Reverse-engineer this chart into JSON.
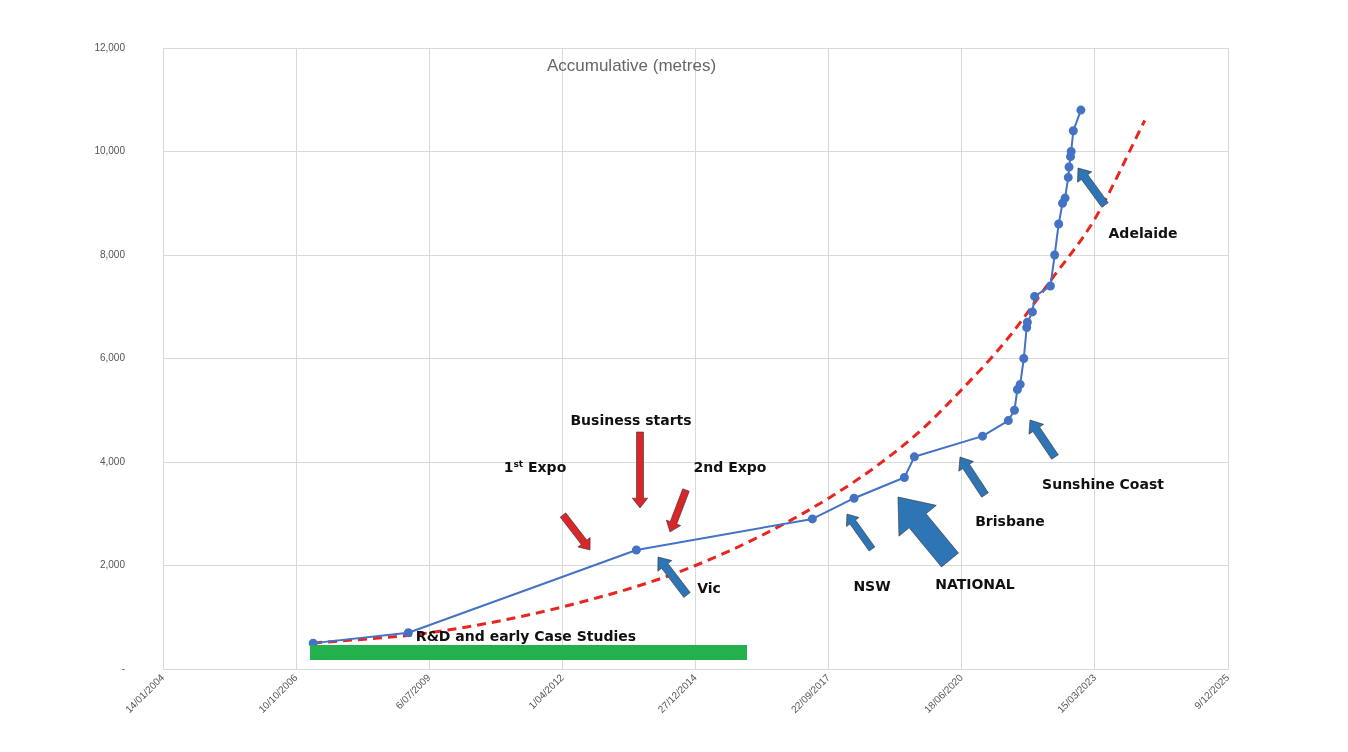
{
  "chart_data": {
    "type": "line",
    "title": "Accumulative (metres)",
    "xlim": [
      "2004-01-14",
      "2025-12-09"
    ],
    "xticks": [
      {
        "value": "2004-01-14",
        "label": "14/01/2004"
      },
      {
        "value": "2006-10-10",
        "label": "10/10/2006"
      },
      {
        "value": "2009-07-06",
        "label": "6/07/2009"
      },
      {
        "value": "2012-04-01",
        "label": "1/04/2012"
      },
      {
        "value": "2014-12-27",
        "label": "27/12/2014"
      },
      {
        "value": "2017-09-22",
        "label": "22/09/2017"
      },
      {
        "value": "2020-06-18",
        "label": "18/06/2020"
      },
      {
        "value": "2023-03-15",
        "label": "15/03/2023"
      },
      {
        "value": "2025-12-09",
        "label": "9/12/2025"
      }
    ],
    "ylim": [
      0,
      12000
    ],
    "yticks": [
      {
        "value": 0,
        "label": "-"
      },
      {
        "value": 2000,
        "label": "2,000"
      },
      {
        "value": 4000,
        "label": "4,000"
      },
      {
        "value": 6000,
        "label": "6,000"
      },
      {
        "value": 8000,
        "label": "8,000"
      },
      {
        "value": 10000,
        "label": "10,000"
      },
      {
        "value": 12000,
        "label": "12,000"
      }
    ],
    "grid": true,
    "legend": false,
    "series": [
      {
        "color": "#4472c4",
        "marker": "circle",
        "line_style": "solid",
        "x": [
          "2007-02-15",
          "2009-01-30",
          "2013-10-09",
          "2017-05-23",
          "2018-04-01",
          "2019-04-14",
          "2019-06-28",
          "2020-11-21",
          "2021-06-03",
          "2021-07-19",
          "2021-08-10",
          "2021-08-31",
          "2021-09-27",
          "2021-10-19",
          "2021-10-24",
          "2021-12-01",
          "2021-12-17",
          "2022-04-15",
          "2022-05-17",
          "2022-06-16",
          "2022-07-15",
          "2022-08-03",
          "2022-08-27",
          "2022-09-02",
          "2022-09-13",
          "2022-09-18",
          "2022-10-04",
          "2022-11-30"
        ],
        "values": [
          500,
          700,
          2300,
          2900,
          3300,
          3700,
          4100,
          4500,
          4800,
          5000,
          5400,
          5500,
          6000,
          6600,
          6700,
          6900,
          7200,
          7400,
          8000,
          8600,
          9000,
          9100,
          9500,
          9700,
          9900,
          10000,
          10400,
          10800
        ]
      },
      {
        "type": "line",
        "color": "#e8251f",
        "marker": "none",
        "line_style": "dashed",
        "x": [
          "2007-02-15",
          "2009-07-06",
          "2012-04-01",
          "2014-12-27",
          "2017-09-22",
          "2019-06-28",
          "2020-06-18",
          "2021-06-03",
          "2022-04-15",
          "2023-03-15",
          "2024-03-24"
        ],
        "values": [
          500,
          700,
          1200,
          2000,
          3300,
          4500,
          5400,
          6400,
          7500,
          8700,
          10600
        ]
      }
    ],
    "annotations": [
      "Business starts",
      "1$^{st}$ Expo",
      "2nd Expo",
      "Vic",
      "NSW",
      "NATIONAL",
      "Brisbane",
      "Sunshine Coast",
      "Adelaide",
      "R&D and early Case Studies"
    ]
  }
}
